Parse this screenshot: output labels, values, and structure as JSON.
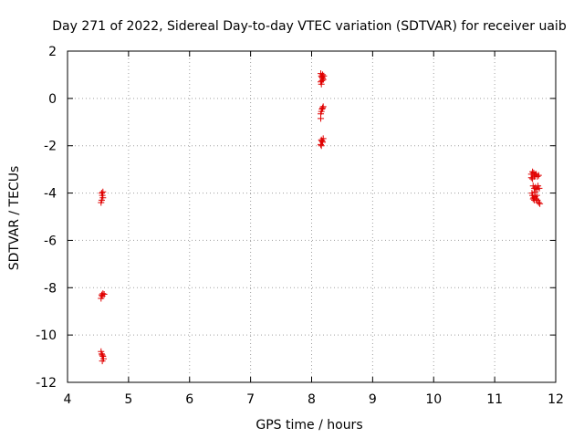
{
  "chart_data": {
    "type": "scatter",
    "title": "Day 271 of 2022, Sidereal Day-to-day VTEC variation (SDTVAR) for receiver uaib",
    "xlabel": "GPS time / hours",
    "ylabel": "SDTVAR / TECUs",
    "xlim": [
      4,
      12
    ],
    "ylim": [
      -12,
      2
    ],
    "xticks": [
      4,
      5,
      6,
      7,
      8,
      9,
      10,
      11,
      12
    ],
    "yticks": [
      2,
      0,
      -2,
      -4,
      -6,
      -8,
      -10,
      -12
    ],
    "xtick_labels": [
      "4",
      "5",
      "6",
      "7",
      "8",
      "9",
      "10",
      "11",
      "12"
    ],
    "ytick_labels": [
      "2",
      "0",
      "-2",
      "-4",
      "-6",
      "-8",
      "-10",
      "-12"
    ],
    "grid": true,
    "marker": "plus",
    "colors": {
      "points": "#e00000",
      "axes": "#000000",
      "grid": "#a0a0a0"
    },
    "series": [
      {
        "points": [
          [
            4.56,
            -4.0
          ],
          [
            4.57,
            -4.1
          ],
          [
            4.58,
            -4.2
          ],
          [
            4.56,
            -4.3
          ],
          [
            4.55,
            -4.4
          ],
          [
            4.58,
            -3.95
          ],
          [
            4.56,
            -8.3
          ],
          [
            4.57,
            -8.35
          ],
          [
            4.58,
            -8.25
          ],
          [
            4.6,
            -8.28
          ],
          [
            4.55,
            -8.45
          ],
          [
            4.55,
            -10.7
          ],
          [
            4.56,
            -10.8
          ],
          [
            4.57,
            -10.85
          ],
          [
            4.58,
            -10.9
          ],
          [
            4.59,
            -11.0
          ],
          [
            4.57,
            -11.1
          ],
          [
            8.15,
            1.05
          ],
          [
            8.16,
            0.95
          ],
          [
            8.17,
            0.9
          ],
          [
            8.18,
            0.85
          ],
          [
            8.19,
            0.8
          ],
          [
            8.15,
            0.7
          ],
          [
            8.16,
            0.6
          ],
          [
            8.2,
            0.95
          ],
          [
            8.18,
            1.0
          ],
          [
            8.17,
            0.75
          ],
          [
            8.18,
            -0.4
          ],
          [
            8.17,
            -0.45
          ],
          [
            8.16,
            -0.55
          ],
          [
            8.15,
            -0.65
          ],
          [
            8.15,
            -0.85
          ],
          [
            8.19,
            -0.35
          ],
          [
            8.16,
            -1.75
          ],
          [
            8.17,
            -1.8
          ],
          [
            8.18,
            -1.85
          ],
          [
            8.15,
            -1.95
          ],
          [
            8.19,
            -1.7
          ],
          [
            8.16,
            -2.0
          ],
          [
            11.6,
            -3.2
          ],
          [
            11.62,
            -3.1
          ],
          [
            11.64,
            -3.15
          ],
          [
            11.66,
            -3.25
          ],
          [
            11.68,
            -3.2
          ],
          [
            11.7,
            -3.3
          ],
          [
            11.62,
            -3.4
          ],
          [
            11.65,
            -3.3
          ],
          [
            11.72,
            -3.25
          ],
          [
            11.6,
            -3.35
          ],
          [
            11.63,
            -3.7
          ],
          [
            11.65,
            -3.8
          ],
          [
            11.67,
            -3.75
          ],
          [
            11.69,
            -3.85
          ],
          [
            11.71,
            -3.7
          ],
          [
            11.73,
            -3.8
          ],
          [
            11.66,
            -3.95
          ],
          [
            11.61,
            -4.0
          ],
          [
            11.62,
            -4.1
          ],
          [
            11.64,
            -4.2
          ],
          [
            11.66,
            -4.15
          ],
          [
            11.68,
            -4.25
          ],
          [
            11.7,
            -4.3
          ],
          [
            11.72,
            -4.4
          ],
          [
            11.74,
            -4.45
          ],
          [
            11.65,
            -4.3
          ],
          [
            11.69,
            -4.1
          ],
          [
            11.63,
            -4.25
          ]
        ]
      }
    ]
  }
}
